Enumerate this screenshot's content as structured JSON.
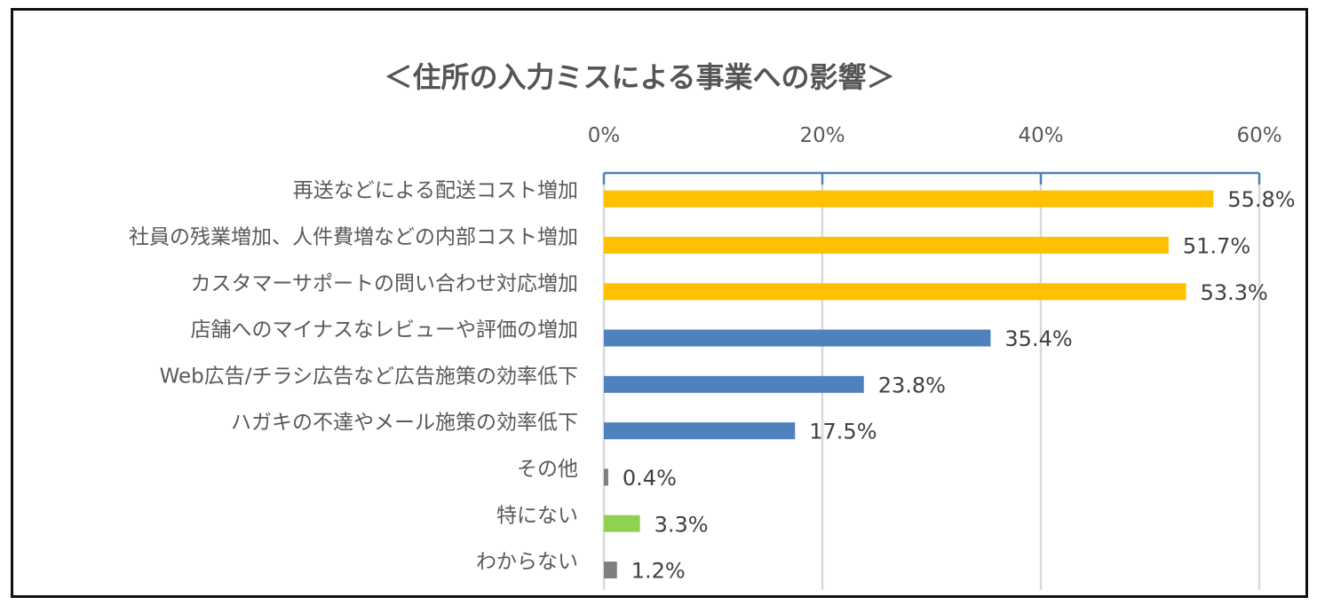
{
  "chart_data": {
    "type": "bar",
    "orientation": "horizontal",
    "title": "＜住所の入力ミスによる事業への影響＞",
    "xlim": [
      0,
      60
    ],
    "ticks": [
      "0%",
      "20%",
      "40%",
      "60%"
    ],
    "tick_values": [
      0,
      20,
      40,
      60
    ],
    "axis_position": "top",
    "grid": true,
    "categories": [
      "再送などによる配送コスト増加",
      "社員の残業増加、人件費増などの内部コスト増加",
      "カスタマーサポートの問い合わせ対応増加",
      "店舗へのマイナスなレビューや評価の増加",
      "Web広告/チラシ広告など広告施策の効率低下",
      "ハガキの不達やメール施策の効率低下",
      "その他",
      "特にない",
      "わからない"
    ],
    "values": [
      55.8,
      51.7,
      53.3,
      35.4,
      23.8,
      17.5,
      0.4,
      3.3,
      1.2
    ],
    "value_labels": [
      "55.8%",
      "51.7%",
      "53.3%",
      "35.4%",
      "23.8%",
      "17.5%",
      "0.4%",
      "3.3%",
      "1.2%"
    ],
    "colors": [
      "#FFC000",
      "#FFC000",
      "#FFC000",
      "#4F81BD",
      "#4F81BD",
      "#4F81BD",
      "#7F7F7F",
      "#92D050",
      "#7F7F7F"
    ]
  }
}
